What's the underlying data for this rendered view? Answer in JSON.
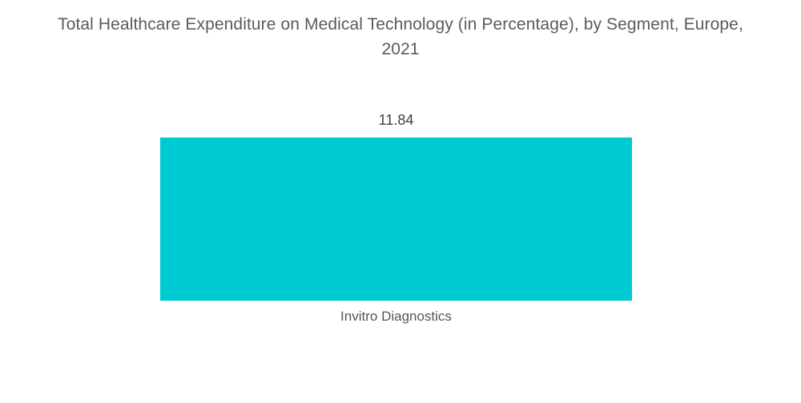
{
  "chart_data": {
    "type": "bar",
    "title": "Total Healthcare Expenditure on Medical Technology (in Percentage), by Segment, Europe, 2021",
    "title_lines": [
      "Total Healthcare Expenditure on Medical Technology (in Percentage), by Segment, Europe,",
      "2021"
    ],
    "categories": [
      "Invitro Diagnostics"
    ],
    "values": [
      11.84
    ],
    "value_labels": [
      "11.84"
    ],
    "series": [
      {
        "name": "Total Healthcare Expenditure on Medical Technology (%)",
        "values": [
          11.84
        ]
      }
    ],
    "xlabel": "",
    "ylabel": "",
    "legend_position": "none",
    "grid": false,
    "axes_visible": false,
    "orientation": "vertical",
    "bar_color": "#00cad1",
    "title_color": "#5a5b5d",
    "value_label_color": "#3e4042",
    "category_label_color": "#54565a",
    "background_color": "#ffffff"
  }
}
